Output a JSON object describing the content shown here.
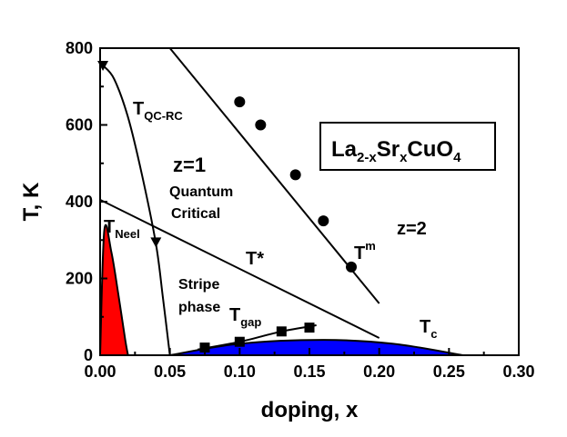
{
  "chart_data": {
    "type": "scatter",
    "xlabel": "doping, x",
    "ylabel": "T, K",
    "xlim": [
      0,
      0.3
    ],
    "ylim": [
      0,
      800
    ],
    "x_ticks": [
      "0.00",
      "0.05",
      "0.10",
      "0.15",
      "0.20",
      "0.25",
      "0.30"
    ],
    "y_ticks": [
      "0",
      "200",
      "400",
      "600",
      "800"
    ],
    "grid": false,
    "legend": "none",
    "compound": {
      "base": "La",
      "s1": "2-x",
      "m1": "Sr",
      "s2": "x",
      "m2": "CuO",
      "s3": "4"
    },
    "annotations": {
      "tqc": {
        "base": "T",
        "sub": "QC-RC"
      },
      "tneel": {
        "base": "T",
        "sub": "Neel"
      },
      "tm": {
        "base": "T",
        "sup": "m"
      },
      "tstar": "T*",
      "tgap": {
        "base": "T",
        "sub": "gap"
      },
      "tc": {
        "base": "T",
        "sub": "c"
      },
      "z1": "z=1",
      "z2": "z=2",
      "qc_line1": "Quantum",
      "qc_line2": "Critical",
      "stripe_line1": "Stripe",
      "stripe_line2": "phase"
    },
    "series": [
      {
        "key": "tm_points",
        "marker": "circle",
        "x": [
          0.1,
          0.115,
          0.14,
          0.16,
          0.18
        ],
        "y": [
          660,
          600,
          470,
          350,
          230
        ]
      },
      {
        "key": "tm_line",
        "marker": "none",
        "x": [
          0.05,
          0.2
        ],
        "y": [
          800,
          135
        ]
      },
      {
        "key": "tstar_line",
        "marker": "none",
        "x": [
          0.0,
          0.2
        ],
        "y": [
          405,
          45
        ]
      },
      {
        "key": "tqc_curve",
        "marker": "none",
        "x": [
          0.002,
          0.01,
          0.02,
          0.03,
          0.04,
          0.045,
          0.05
        ],
        "y": [
          755,
          720,
          620,
          470,
          290,
          150,
          0
        ]
      },
      {
        "key": "tqc_points",
        "marker": "triangle-down",
        "x": [
          0.002,
          0.04
        ],
        "y": [
          755,
          295
        ]
      },
      {
        "key": "tgap_points",
        "marker": "square",
        "x": [
          0.075,
          0.1,
          0.13,
          0.15
        ],
        "y": [
          20,
          35,
          62,
          72
        ]
      },
      {
        "key": "tgap_line",
        "marker": "none",
        "x": [
          0.07,
          0.1,
          0.13,
          0.155
        ],
        "y": [
          15,
          35,
          62,
          78
        ]
      },
      {
        "key": "neel_dome",
        "marker": "fill",
        "color": "#ff0000",
        "x": [
          0.0,
          0.003,
          0.008,
          0.013,
          0.018,
          0.02
        ],
        "y": [
          0,
          325,
          270,
          160,
          40,
          0
        ]
      },
      {
        "key": "tc_dome",
        "marker": "fill",
        "color": "#0000ff",
        "x": [
          0.05,
          0.1,
          0.16,
          0.21,
          0.26
        ],
        "y": [
          0,
          30,
          40,
          30,
          0
        ]
      }
    ]
  }
}
